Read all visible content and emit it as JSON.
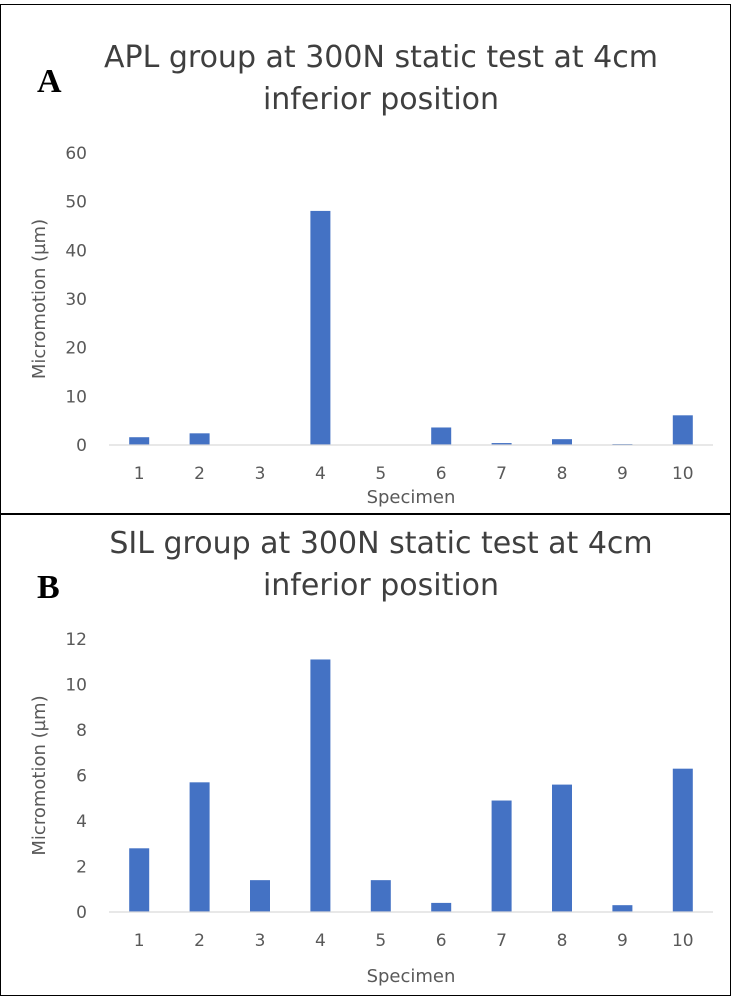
{
  "chart_data": [
    {
      "type": "bar",
      "panel_label": "A",
      "title": "APL group at 300N static test at 4cm inferior position",
      "title_lines": [
        "APL group at 300N static test at 4cm",
        "inferior position"
      ],
      "xlabel": "Specimen",
      "ylabel": "Micromotion (µm)",
      "categories": [
        "1",
        "2",
        "3",
        "4",
        "5",
        "6",
        "7",
        "8",
        "9",
        "10"
      ],
      "values": [
        1.6,
        2.4,
        0.1,
        48.1,
        0.1,
        3.6,
        0.4,
        1.2,
        0.2,
        6.1
      ],
      "ylim": [
        0,
        60
      ],
      "yticks": [
        0,
        10,
        20,
        30,
        40,
        50,
        60
      ],
      "bar_color": "#4472c4",
      "grid": false
    },
    {
      "type": "bar",
      "panel_label": "B",
      "title": "SIL group at 300N static test at 4cm inferior position",
      "title_lines": [
        "SIL group at 300N static test at 4cm",
        "inferior position"
      ],
      "xlabel": "Specimen",
      "ylabel": "Micromotion (µm)",
      "categories": [
        "1",
        "2",
        "3",
        "4",
        "5",
        "6",
        "7",
        "8",
        "9",
        "10"
      ],
      "values": [
        2.8,
        5.7,
        1.4,
        11.1,
        1.4,
        0.4,
        4.9,
        5.6,
        0.3,
        6.3
      ],
      "ylim": [
        0,
        12
      ],
      "yticks": [
        0,
        2,
        4,
        6,
        8,
        10,
        12
      ],
      "bar_color": "#4472c4",
      "grid": false
    }
  ]
}
